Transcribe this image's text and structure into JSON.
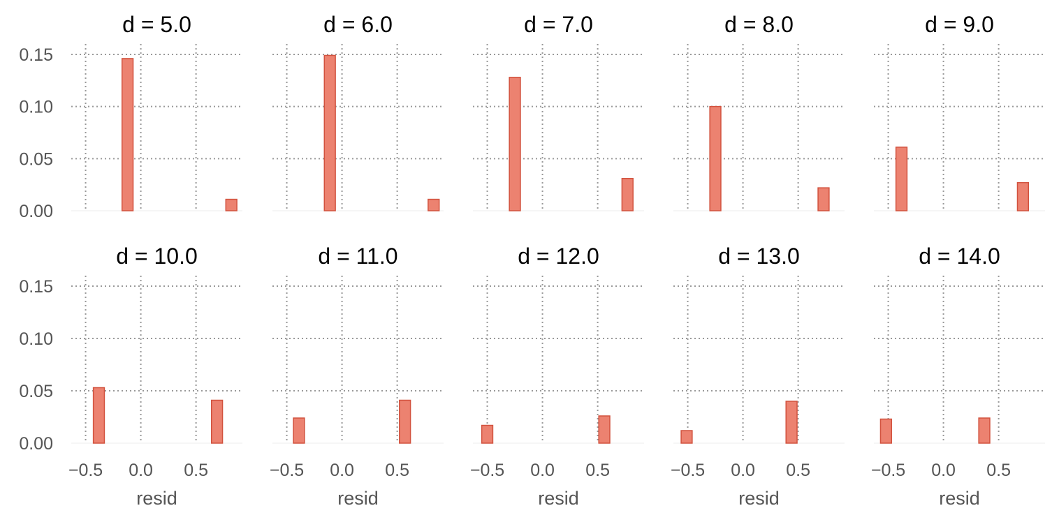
{
  "chart_data": {
    "type": "bar",
    "layout": "facet-grid",
    "rows": 2,
    "cols": 5,
    "shared_axes": true,
    "xlabel": "resid",
    "ylabel": "",
    "xlim": [
      -0.63,
      0.92
    ],
    "ylim": [
      0,
      0.16
    ],
    "xticks": [
      -0.5,
      0.0,
      0.5
    ],
    "xtick_labels": [
      "−0.5",
      "0.0",
      "0.5"
    ],
    "yticks": [
      0.0,
      0.05,
      0.1,
      0.15
    ],
    "ytick_labels": [
      "0.00",
      "0.05",
      "0.10",
      "0.15"
    ],
    "grid": true,
    "bar_width": 0.1,
    "colors": {
      "bar_fill": "#ec8270",
      "bar_edge": "#d2523e",
      "grid": "#999999"
    },
    "panels": [
      {
        "title": "d = 5.0",
        "bars": [
          {
            "x": -0.12,
            "y": 0.146
          },
          {
            "x": 0.82,
            "y": 0.011
          }
        ]
      },
      {
        "title": "d = 6.0",
        "bars": [
          {
            "x": -0.11,
            "y": 0.149
          },
          {
            "x": 0.83,
            "y": 0.011
          }
        ]
      },
      {
        "title": "d = 7.0",
        "bars": [
          {
            "x": -0.25,
            "y": 0.128
          },
          {
            "x": 0.77,
            "y": 0.031
          }
        ]
      },
      {
        "title": "d = 8.0",
        "bars": [
          {
            "x": -0.25,
            "y": 0.1
          },
          {
            "x": 0.73,
            "y": 0.022
          }
        ]
      },
      {
        "title": "d = 9.0",
        "bars": [
          {
            "x": -0.38,
            "y": 0.061
          },
          {
            "x": 0.72,
            "y": 0.027
          }
        ]
      },
      {
        "title": "d = 10.0",
        "bars": [
          {
            "x": -0.38,
            "y": 0.053
          },
          {
            "x": 0.69,
            "y": 0.041
          }
        ]
      },
      {
        "title": "d = 11.0",
        "bars": [
          {
            "x": -0.39,
            "y": 0.024
          },
          {
            "x": 0.57,
            "y": 0.041
          }
        ]
      },
      {
        "title": "d = 12.0",
        "bars": [
          {
            "x": -0.5,
            "y": 0.017
          },
          {
            "x": 0.56,
            "y": 0.026
          }
        ]
      },
      {
        "title": "d = 13.0",
        "bars": [
          {
            "x": -0.51,
            "y": 0.012
          },
          {
            "x": 0.44,
            "y": 0.04
          }
        ]
      },
      {
        "title": "d = 14.0",
        "bars": [
          {
            "x": -0.52,
            "y": 0.023
          },
          {
            "x": 0.37,
            "y": 0.024
          }
        ]
      }
    ]
  }
}
